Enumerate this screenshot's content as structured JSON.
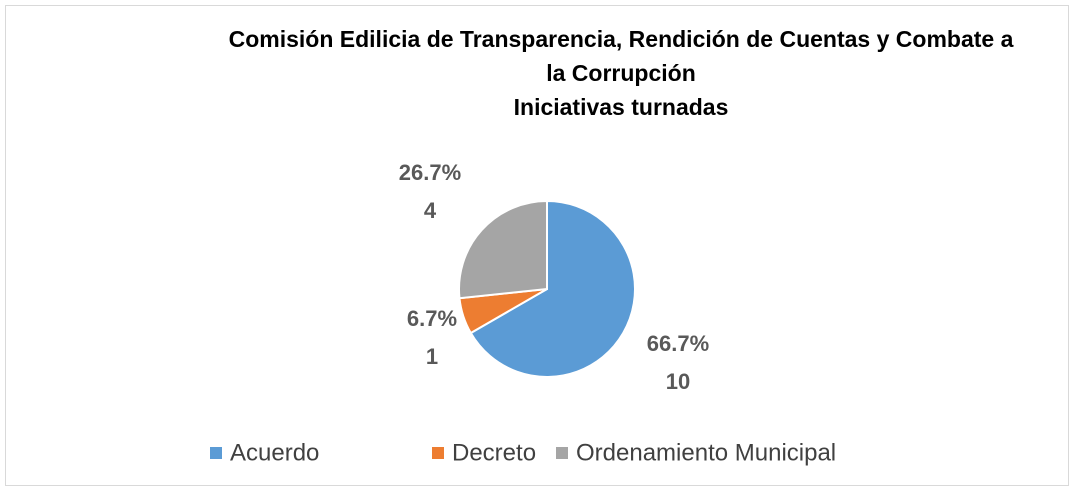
{
  "chart_data": {
    "type": "pie",
    "title": "Comisión Edilicia de Transparencia, Rendición de Cuentas y Combate a la Corrupción",
    "subtitle": "Iniciativas turnadas",
    "categories": [
      "Acuerdo",
      "Decreto",
      "Ordenamiento Municipal"
    ],
    "values": [
      10,
      1,
      4
    ],
    "percent_labels": [
      "66.7%",
      "6.7%",
      "26.7%"
    ],
    "colors": [
      "#5b9bd5",
      "#ed7d31",
      "#a5a5a5"
    ],
    "legend": "bottom"
  }
}
